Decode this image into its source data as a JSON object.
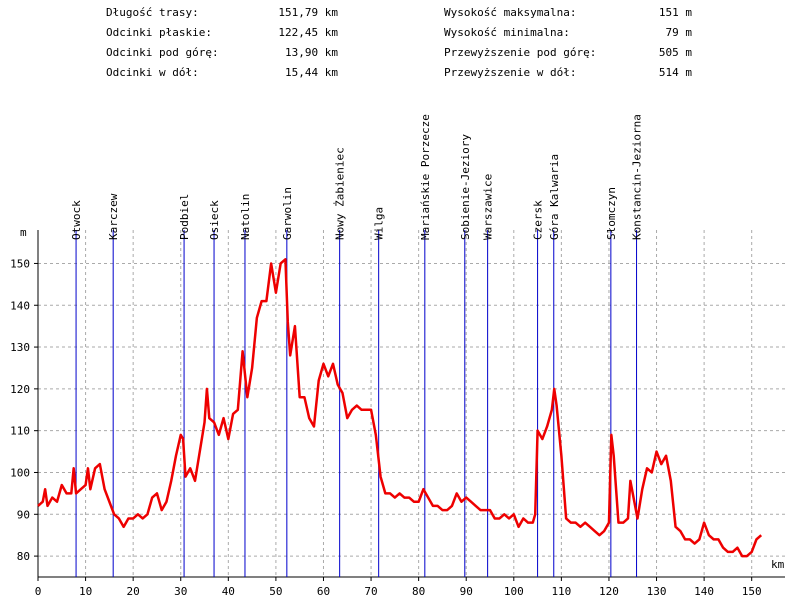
{
  "chart_data": {
    "type": "line",
    "stats": {
      "left": [
        [
          "Długość trasy:",
          "151,79 km"
        ],
        [
          "Odcinki płaskie:",
          "122,45 km"
        ],
        [
          "Odcinki pod górę:",
          "13,90 km"
        ],
        [
          "Odcinki w dół:",
          "15,44 km"
        ]
      ],
      "right": [
        [
          "Wysokość maksymalna:",
          "151 m"
        ],
        [
          "Wysokość minimalna:",
          "79 m"
        ],
        [
          "Przewyższenie pod górę:",
          "505 m"
        ],
        [
          "Przewyższenie w dół:",
          "514 m"
        ]
      ]
    },
    "xlabel": "km",
    "ylabel": "m",
    "xlim": [
      0,
      157
    ],
    "ylim": [
      75,
      158
    ],
    "xticks": [
      0,
      10,
      20,
      30,
      40,
      50,
      60,
      70,
      80,
      90,
      100,
      110,
      120,
      130,
      140,
      150
    ],
    "yticks": [
      80,
      90,
      100,
      110,
      120,
      130,
      140,
      150
    ],
    "grid": true,
    "markers": [
      {
        "label": "Otwock",
        "x": 8.0
      },
      {
        "label": "Karczew",
        "x": 15.8
      },
      {
        "label": "Podbiel",
        "x": 30.7
      },
      {
        "label": "Osieck",
        "x": 37.0
      },
      {
        "label": "Natolin",
        "x": 43.5
      },
      {
        "label": "Garwolin",
        "x": 52.3
      },
      {
        "label": "Nowy Żabieniec",
        "x": 63.4
      },
      {
        "label": "Wilga",
        "x": 71.6
      },
      {
        "label": "Mariańskie Porzecze",
        "x": 81.3
      },
      {
        "label": "Sobienie-Jeziory",
        "x": 89.7
      },
      {
        "label": "Warszawice",
        "x": 94.5
      },
      {
        "label": "Czersk",
        "x": 105.0
      },
      {
        "label": "Góra Kalwaria",
        "x": 108.4
      },
      {
        "label": "Słomczyn",
        "x": 120.4
      },
      {
        "label": "Konstancin-Jeziorna",
        "x": 125.8
      }
    ],
    "marker_color": "#0000cc",
    "series": [
      {
        "color": "#ee0000",
        "x": [
          0,
          1,
          1.5,
          2,
          3,
          4,
          5,
          6,
          7,
          7.5,
          8,
          9,
          10,
          10.5,
          11,
          12,
          13,
          14,
          15,
          16,
          17,
          18,
          19,
          20,
          21,
          22,
          23,
          24,
          25,
          26,
          27,
          28,
          29,
          30,
          30.5,
          31,
          32,
          33,
          34,
          35,
          35.5,
          36,
          37,
          38,
          39,
          40,
          41,
          42,
          43,
          44,
          45,
          46,
          47,
          48,
          49,
          50,
          51,
          52,
          52.5,
          53,
          54,
          55,
          56,
          57,
          58,
          59,
          60,
          61,
          62,
          63,
          64,
          65,
          66,
          67,
          68,
          69,
          70,
          71,
          72,
          73,
          74,
          75,
          76,
          77,
          78,
          79,
          80,
          81,
          82,
          83,
          84,
          85,
          86,
          87,
          88,
          89,
          90,
          91,
          92,
          93,
          94,
          95,
          96,
          97,
          98,
          99,
          100,
          101,
          102,
          103,
          104,
          104.5,
          105,
          106,
          107,
          108,
          108.5,
          109,
          110,
          111,
          112,
          113,
          114,
          115,
          116,
          117,
          118,
          119,
          120,
          120.5,
          121,
          122,
          123,
          124,
          124.5,
          125,
          126,
          127,
          128,
          129,
          130,
          131,
          132,
          133,
          134,
          135,
          136,
          137,
          138,
          139,
          140,
          141,
          142,
          143,
          144,
          145,
          146,
          147,
          148,
          149,
          150,
          151,
          152
        ],
        "values": [
          92,
          93,
          96,
          92,
          94,
          93,
          97,
          95,
          95,
          101,
          95,
          96,
          97,
          101,
          96,
          101,
          102,
          96,
          93,
          90,
          89,
          87,
          89,
          89,
          90,
          89,
          90,
          94,
          95,
          91,
          93,
          98,
          104,
          109,
          108,
          99,
          101,
          98,
          105,
          112,
          120,
          113,
          112,
          109,
          113,
          108,
          114,
          115,
          129,
          118,
          125,
          137,
          141,
          141,
          150,
          143,
          150,
          151,
          136,
          128,
          135,
          118,
          118,
          113,
          111,
          122,
          126,
          123,
          126,
          121,
          119,
          113,
          115,
          116,
          115,
          115,
          115,
          109,
          99,
          95,
          95,
          94,
          95,
          94,
          94,
          93,
          93,
          96,
          94,
          92,
          92,
          91,
          91,
          92,
          95,
          93,
          94,
          93,
          92,
          91,
          91,
          91,
          89,
          89,
          90,
          89,
          90,
          87,
          89,
          88,
          88,
          90,
          110,
          108,
          111,
          115,
          120,
          116,
          104,
          89,
          88,
          88,
          87,
          88,
          87,
          86,
          85,
          86,
          88,
          109,
          104,
          88,
          88,
          89,
          98,
          95,
          89,
          96,
          101,
          100,
          105,
          102,
          104,
          98,
          87,
          86,
          84,
          84,
          83,
          84,
          88,
          85,
          84,
          84,
          82,
          81,
          81,
          82,
          80,
          80,
          81,
          84,
          85
        ]
      }
    ]
  }
}
